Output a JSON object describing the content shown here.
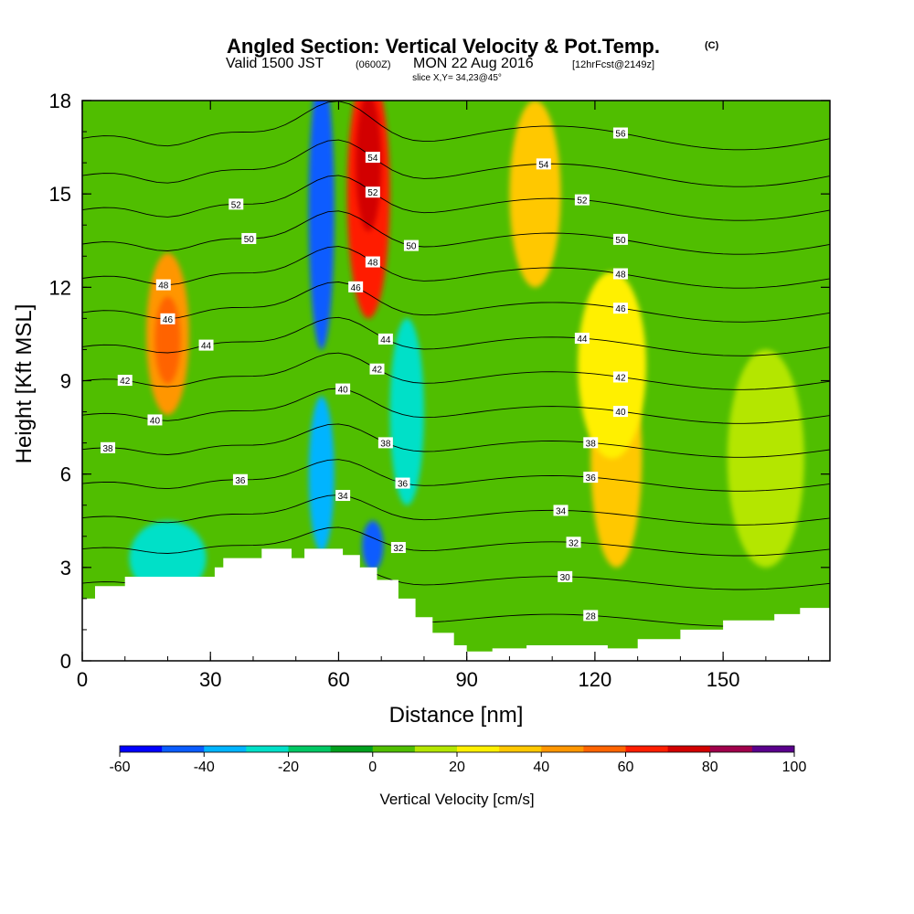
{
  "title": {
    "main": "Angled Section: Vertical Velocity & Pot.Temp.",
    "unit_tag": "(C)",
    "valid_prefix": "Valid 1500 JST",
    "valid_utc": "(0600Z)",
    "valid_date": "MON 22 Aug 2016",
    "fcst": "[12hrFcst@2149z]",
    "slice": "slice X,Y= 34,23@45°"
  },
  "chart_data": {
    "type": "heatmap",
    "xlabel": "Distance [nm]",
    "ylabel": "Height [Kft MSL]",
    "xlim": [
      0,
      175
    ],
    "ylim": [
      0,
      18
    ],
    "xticks": [
      "0",
      "30",
      "60",
      "90",
      "120",
      "150"
    ],
    "yticks": [
      "0",
      "3",
      "6",
      "9",
      "12",
      "15",
      "18"
    ],
    "colorbar": {
      "label": "Vertical Velocity [cm/s]",
      "ticks": [
        "-60",
        "-40",
        "-20",
        "0",
        "20",
        "40",
        "60",
        "80",
        "100"
      ],
      "colors": [
        "#0000ff",
        "#0a5cff",
        "#00b4ff",
        "#00e0c8",
        "#00c864",
        "#00a01e",
        "#50be00",
        "#b4e600",
        "#fff000",
        "#ffc800",
        "#ff9600",
        "#ff6400",
        "#ff1e00",
        "#d20000",
        "#a0004b",
        "#5a008c"
      ]
    },
    "terrain_kft": [
      [
        0,
        2
      ],
      [
        3,
        2.4
      ],
      [
        10,
        2.7
      ],
      [
        28,
        2.7
      ],
      [
        31,
        3.0
      ],
      [
        33,
        3.3
      ],
      [
        42,
        3.6
      ],
      [
        49,
        3.3
      ],
      [
        52,
        3.6
      ],
      [
        61,
        3.4
      ],
      [
        65,
        3.0
      ],
      [
        69,
        2.6
      ],
      [
        74,
        2.0
      ],
      [
        78,
        1.4
      ],
      [
        82,
        0.9
      ],
      [
        87,
        0.5
      ],
      [
        90,
        0.3
      ],
      [
        96,
        0.4
      ],
      [
        104,
        0.5
      ],
      [
        112,
        0.5
      ],
      [
        118,
        0.5
      ],
      [
        123,
        0.4
      ],
      [
        130,
        0.7
      ],
      [
        140,
        1.0
      ],
      [
        150,
        1.3
      ],
      [
        162,
        1.5
      ],
      [
        168,
        1.7
      ],
      [
        175,
        1.7
      ]
    ],
    "shading": [
      {
        "x": 20,
        "y": 10.5,
        "rx": 5,
        "ry": 2.6,
        "value": 40
      },
      {
        "x": 20,
        "y": 10.3,
        "rx": 3,
        "ry": 1.4,
        "value": 55
      },
      {
        "x": 20,
        "y": 3.3,
        "rx": 9,
        "ry": 1.2,
        "value": -30
      },
      {
        "x": 56,
        "y": 14.5,
        "rx": 3,
        "ry": 4.5,
        "value": -45
      },
      {
        "x": 56,
        "y": 6.0,
        "rx": 3,
        "ry": 2.5,
        "value": -35
      },
      {
        "x": 67,
        "y": 15.0,
        "rx": 5,
        "ry": 4,
        "value": 60
      },
      {
        "x": 67,
        "y": 16.0,
        "rx": 3,
        "ry": 2.2,
        "value": 75
      },
      {
        "x": 68,
        "y": 3.7,
        "rx": 2.5,
        "ry": 0.8,
        "value": -45
      },
      {
        "x": 76,
        "y": 8.0,
        "rx": 4,
        "ry": 3,
        "value": -30
      },
      {
        "x": 106,
        "y": 15.0,
        "rx": 6,
        "ry": 3,
        "value": 35
      },
      {
        "x": 125,
        "y": 6.5,
        "rx": 6,
        "ry": 3.5,
        "value": 30
      },
      {
        "x": 124,
        "y": 9.5,
        "rx": 8,
        "ry": 3,
        "value": 20
      },
      {
        "x": 160,
        "y": 6.5,
        "rx": 9,
        "ry": 3.5,
        "value": 15
      }
    ],
    "theta_contours": [
      {
        "label": "28",
        "base": 1.3,
        "labels_at": [
          119
        ]
      },
      {
        "label": "30",
        "base": 2.5,
        "labels_at": [
          113
        ]
      },
      {
        "label": "32",
        "base": 3.6,
        "labels_at": [
          74,
          115
        ]
      },
      {
        "label": "34",
        "base": 4.6,
        "labels_at": [
          61,
          112
        ]
      },
      {
        "label": "36",
        "base": 5.7,
        "labels_at": [
          37,
          75,
          119
        ]
      },
      {
        "label": "38",
        "base": 6.8,
        "labels_at": [
          6,
          71,
          119
        ]
      },
      {
        "label": "40",
        "base": 7.9,
        "labels_at": [
          17,
          61,
          126
        ]
      },
      {
        "label": "42",
        "base": 9.0,
        "labels_at": [
          10,
          69,
          126
        ]
      },
      {
        "label": "44",
        "base": 10.1,
        "labels_at": [
          29,
          71,
          117
        ]
      },
      {
        "label": "46",
        "base": 11.2,
        "labels_at": [
          20,
          64,
          126
        ]
      },
      {
        "label": "48",
        "base": 12.3,
        "labels_at": [
          19,
          68,
          126
        ]
      },
      {
        "label": "50",
        "base": 13.4,
        "labels_at": [
          39,
          77,
          126
        ]
      },
      {
        "label": "52",
        "base": 14.5,
        "labels_at": [
          36,
          68,
          117
        ]
      },
      {
        "label": "54",
        "base": 15.6,
        "labels_at": [
          68,
          108
        ]
      },
      {
        "label": "56",
        "base": 16.8,
        "labels_at": [
          126
        ]
      }
    ]
  }
}
